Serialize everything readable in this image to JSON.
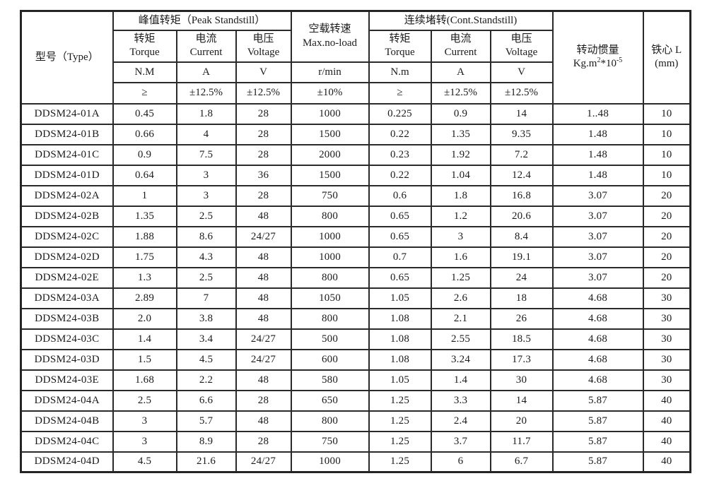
{
  "table": {
    "header": {
      "type_label": "型号（Type）",
      "peak_group": "峰值转矩（Peak Standstill）",
      "noload_line1": "空载转速",
      "noload_line2": "Max.no-load",
      "cont_group": "连续堵转(Cont.Standstill)",
      "peak_torque_cn": "转矩",
      "peak_torque_en": "Torque",
      "peak_current_cn": "电流",
      "peak_current_en": "Current",
      "peak_voltage_cn": "电压",
      "peak_voltage_en": "Voltage",
      "cont_torque_cn": "转矩",
      "cont_torque_en": "Torque",
      "cont_current_cn": "电流",
      "cont_current_en": "Current",
      "cont_voltage_cn": "电压",
      "cont_voltage_en": "Voltage",
      "unit_peak_torque": "N.M",
      "unit_peak_current": "A",
      "unit_peak_voltage": "V",
      "unit_noload": "r/min",
      "unit_cont_torque": "N.m",
      "unit_cont_current": "A",
      "unit_cont_voltage": "V",
      "tol_peak_torque": "≥",
      "tol_peak_current": "±12.5%",
      "tol_peak_voltage": "±12.5%",
      "tol_noload": "±10%",
      "tol_cont_torque": "≥",
      "tol_cont_current": "±12.5%",
      "tol_cont_voltage": "±12.5%",
      "inertia_cn": "转动惯量",
      "inertia_unit_base": "Kg.m",
      "inertia_unit_sup1": "2",
      "inertia_unit_mid": "*10",
      "inertia_unit_sup2": "-5",
      "core_cn": "铁心 L",
      "core_unit": "(mm)"
    },
    "rows": [
      {
        "model": "DDSM24-01A",
        "values": [
          "0.45",
          "1.8",
          "28",
          "1000",
          "0.225",
          "0.9",
          "14",
          "1..48",
          "10"
        ]
      },
      {
        "model": "DDSM24-01B",
        "values": [
          "0.66",
          "4",
          "28",
          "1500",
          "0.22",
          "1.35",
          "9.35",
          "1.48",
          "10"
        ]
      },
      {
        "model": "DDSM24-01C",
        "values": [
          "0.9",
          "7.5",
          "28",
          "2000",
          "0.23",
          "1.92",
          "7.2",
          "1.48",
          "10"
        ]
      },
      {
        "model": "DDSM24-01D",
        "values": [
          "0.64",
          "3",
          "36",
          "1500",
          "0.22",
          "1.04",
          "12.4",
          "1.48",
          "10"
        ]
      },
      {
        "model": "DDSM24-02A",
        "values": [
          "1",
          "3",
          "28",
          "750",
          "0.6",
          "1.8",
          "16.8",
          "3.07",
          "20"
        ]
      },
      {
        "model": "DDSM24-02B",
        "values": [
          "1.35",
          "2.5",
          "48",
          "800",
          "0.65",
          "1.2",
          "20.6",
          "3.07",
          "20"
        ]
      },
      {
        "model": "DDSM24-02C",
        "values": [
          "1.88",
          "8.6",
          "24/27",
          "1000",
          "0.65",
          "3",
          "8.4",
          "3.07",
          "20"
        ]
      },
      {
        "model": "DDSM24-02D",
        "values": [
          "1.75",
          "4.3",
          "48",
          "1000",
          "0.7",
          "1.6",
          "19.1",
          "3.07",
          "20"
        ]
      },
      {
        "model": "DDSM24-02E",
        "values": [
          "1.3",
          "2.5",
          "48",
          "800",
          "0.65",
          "1.25",
          "24",
          "3.07",
          "20"
        ]
      },
      {
        "model": "DDSM24-03A",
        "values": [
          "2.89",
          "7",
          "48",
          "1050",
          "1.05",
          "2.6",
          "18",
          "4.68",
          "30"
        ]
      },
      {
        "model": "DDSM24-03B",
        "values": [
          "2.0",
          "3.8",
          "48",
          "800",
          "1.08",
          "2.1",
          "26",
          "4.68",
          "30"
        ]
      },
      {
        "model": "DDSM24-03C",
        "values": [
          "1.4",
          "3.4",
          "24/27",
          "500",
          "1.08",
          "2.55",
          "18.5",
          "4.68",
          "30"
        ]
      },
      {
        "model": "DDSM24-03D",
        "values": [
          "1.5",
          "4.5",
          "24/27",
          "600",
          "1.08",
          "3.24",
          "17.3",
          "4.68",
          "30"
        ]
      },
      {
        "model": "DDSM24-03E",
        "values": [
          "1.68",
          "2.2",
          "48",
          "580",
          "1.05",
          "1.4",
          "30",
          "4.68",
          "30"
        ]
      },
      {
        "model": "DDSM24-04A",
        "values": [
          "2.5",
          "6.6",
          "28",
          "650",
          "1.25",
          "3.3",
          "14",
          "5.87",
          "40"
        ]
      },
      {
        "model": "DDSM24-04B",
        "values": [
          "3",
          "5.7",
          "48",
          "800",
          "1.25",
          "2.4",
          "20",
          "5.87",
          "40"
        ]
      },
      {
        "model": "DDSM24-04C",
        "values": [
          "3",
          "8.9",
          "28",
          "750",
          "1.25",
          "3.7",
          "11.7",
          "5.87",
          "40"
        ]
      },
      {
        "model": "DDSM24-04D",
        "values": [
          "4.5",
          "21.6",
          "24/27",
          "1000",
          "1.25",
          "6",
          "6.7",
          "5.87",
          "40"
        ]
      }
    ]
  }
}
